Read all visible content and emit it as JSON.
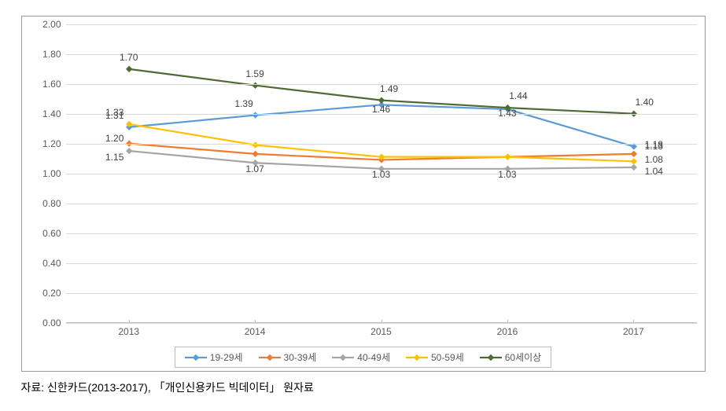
{
  "chart": {
    "type": "line",
    "categories": [
      "2013",
      "2014",
      "2015",
      "2016",
      "2017"
    ],
    "ylim": [
      0.0,
      2.0
    ],
    "ytick_step": 0.2,
    "y_tick_labels": [
      "0.00",
      "0.20",
      "0.40",
      "0.60",
      "0.80",
      "1.00",
      "1.20",
      "1.40",
      "1.60",
      "1.80",
      "2.00"
    ],
    "background_color": "#ffffff",
    "grid_color": "#d9d9d9",
    "axis_color": "#bfbfbf",
    "label_color": "#595959",
    "label_fontsize": 12,
    "line_width": 2.2,
    "marker": "diamond",
    "marker_size": 7,
    "series": [
      {
        "name": "19-29세",
        "color": "#5b9bd5",
        "values": [
          1.31,
          1.39,
          1.46,
          1.43,
          1.18
        ],
        "show_labels": [
          true,
          true,
          true,
          true,
          true
        ],
        "label_offsets": [
          [
            -18,
            -6
          ],
          [
            -14,
            -6
          ],
          [
            0,
            14
          ],
          [
            0,
            14
          ],
          [
            26,
            6
          ]
        ]
      },
      {
        "name": "30-39세",
        "color": "#ed7d31",
        "values": [
          1.2,
          1.13,
          1.09,
          1.11,
          1.13
        ],
        "show_labels": [
          true,
          false,
          false,
          false,
          true
        ],
        "label_offsets": [
          [
            -18,
            2
          ],
          [
            0,
            0
          ],
          [
            0,
            0
          ],
          [
            0,
            0
          ],
          [
            26,
            -1
          ]
        ]
      },
      {
        "name": "40-49세",
        "color": "#a5a5a5",
        "values": [
          1.15,
          1.07,
          1.03,
          1.03,
          1.04
        ],
        "show_labels": [
          true,
          true,
          true,
          true,
          true
        ],
        "label_offsets": [
          [
            -18,
            16
          ],
          [
            0,
            16
          ],
          [
            0,
            16
          ],
          [
            0,
            16
          ],
          [
            26,
            14
          ]
        ]
      },
      {
        "name": "50-59세",
        "color": "#ffc000",
        "values": [
          1.33,
          1.19,
          1.11,
          1.11,
          1.08
        ],
        "show_labels": [
          true,
          false,
          false,
          false,
          true
        ],
        "label_offsets": [
          [
            -18,
            -6
          ],
          [
            0,
            0
          ],
          [
            0,
            0
          ],
          [
            0,
            0
          ],
          [
            26,
            6
          ]
        ]
      },
      {
        "name": "60세이상",
        "color": "#4f6b33",
        "values": [
          1.7,
          1.59,
          1.49,
          1.44,
          1.4
        ],
        "show_labels": [
          true,
          true,
          true,
          true,
          true
        ],
        "label_offsets": [
          [
            0,
            -6
          ],
          [
            0,
            -6
          ],
          [
            10,
            -6
          ],
          [
            14,
            -6
          ],
          [
            14,
            -6
          ]
        ]
      }
    ]
  },
  "source": "자료: 신한카드(2013-2017), 「개인신용카드 빅데이터」 원자료"
}
